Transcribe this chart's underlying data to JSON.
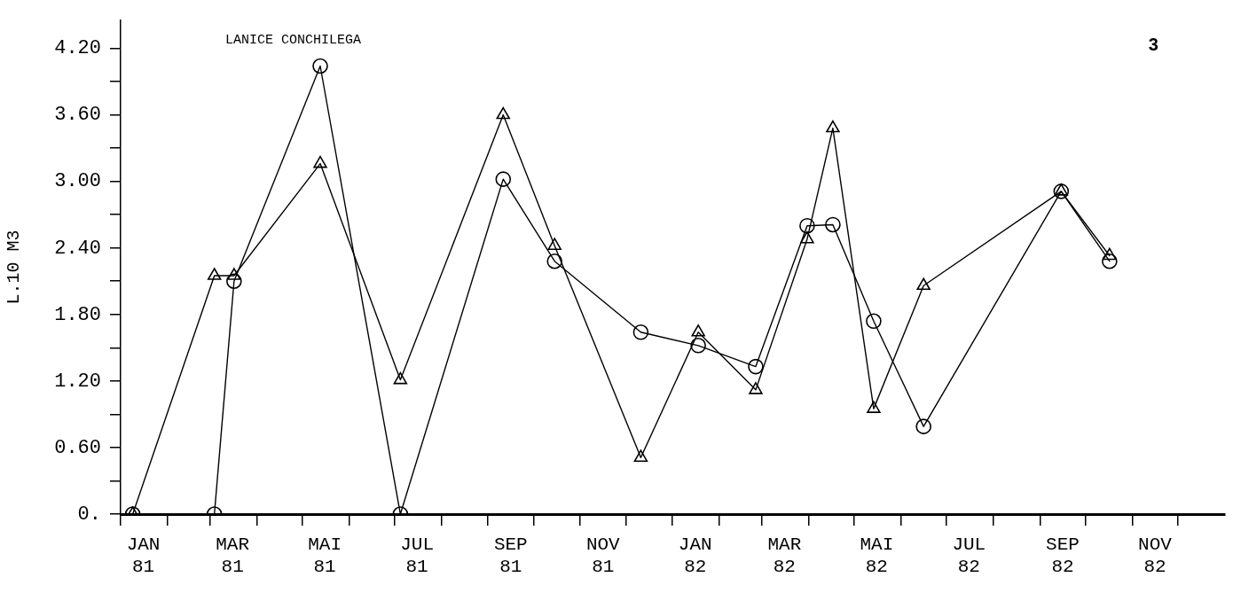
{
  "chart_data": {
    "type": "line",
    "title": "LANICE CONCHILEGA",
    "ylabel": "L.10 M3",
    "annotations": [
      "3"
    ],
    "grid": false,
    "legend": false,
    "xlim": [
      "1981-01-01",
      "1983-01-01"
    ],
    "xticks": [
      {
        "value": "1981-01-01",
        "label": null
      },
      {
        "value": "1981-01-16",
        "label": "JAN\n81"
      },
      {
        "value": "1981-02-01",
        "label": null
      },
      {
        "value": "1981-03-01",
        "label": null
      },
      {
        "value": "1981-03-16",
        "label": "MAR\n81"
      },
      {
        "value": "1981-04-01",
        "label": null
      },
      {
        "value": "1981-05-01",
        "label": null
      },
      {
        "value": "1981-05-16",
        "label": "MAI\n81"
      },
      {
        "value": "1981-06-01",
        "label": null
      },
      {
        "value": "1981-07-01",
        "label": null
      },
      {
        "value": "1981-07-16",
        "label": "JUL\n81"
      },
      {
        "value": "1981-08-01",
        "label": null
      },
      {
        "value": "1981-09-01",
        "label": null
      },
      {
        "value": "1981-09-16",
        "label": "SEP\n81"
      },
      {
        "value": "1981-10-01",
        "label": null
      },
      {
        "value": "1981-11-01",
        "label": null
      },
      {
        "value": "1981-11-16",
        "label": "NOV\n81"
      },
      {
        "value": "1981-12-01",
        "label": null
      },
      {
        "value": "1982-01-01",
        "label": null
      },
      {
        "value": "1982-01-16",
        "label": "JAN\n82"
      },
      {
        "value": "1982-02-01",
        "label": null
      },
      {
        "value": "1982-03-01",
        "label": null
      },
      {
        "value": "1982-03-16",
        "label": "MAR\n82"
      },
      {
        "value": "1982-04-01",
        "label": null
      },
      {
        "value": "1982-05-01",
        "label": null
      },
      {
        "value": "1982-05-16",
        "label": "MAI\n82"
      },
      {
        "value": "1982-06-01",
        "label": null
      },
      {
        "value": "1982-07-01",
        "label": null
      },
      {
        "value": "1982-07-16",
        "label": "JUL\n82"
      },
      {
        "value": "1982-08-01",
        "label": null
      },
      {
        "value": "1982-09-01",
        "label": null
      },
      {
        "value": "1982-09-16",
        "label": "SEP\n82"
      },
      {
        "value": "1982-10-01",
        "label": null
      },
      {
        "value": "1982-11-01",
        "label": null
      },
      {
        "value": "1982-11-16",
        "label": "NOV\n82"
      },
      {
        "value": "1982-12-01",
        "label": null
      }
    ],
    "ylim": [
      0,
      4.45
    ],
    "yticks": [
      {
        "value": 0,
        "label": "0."
      },
      {
        "value": 0.3,
        "label": null
      },
      {
        "value": 0.6,
        "label": "0.60"
      },
      {
        "value": 0.9,
        "label": null
      },
      {
        "value": 1.2,
        "label": "1.20"
      },
      {
        "value": 1.5,
        "label": null
      },
      {
        "value": 1.8,
        "label": "1.80"
      },
      {
        "value": 2.1,
        "label": null
      },
      {
        "value": 2.4,
        "label": "2.40"
      },
      {
        "value": 2.7,
        "label": null
      },
      {
        "value": 3.0,
        "label": "3.00"
      },
      {
        "value": 3.3,
        "label": null
      },
      {
        "value": 3.6,
        "label": "3.60"
      },
      {
        "value": 3.9,
        "label": null
      },
      {
        "value": 4.2,
        "label": "4.20"
      }
    ],
    "series": [
      {
        "marker": "circle",
        "line_style": "solid",
        "color": "#000000",
        "x": [
          "1981-01-09",
          "1981-03-04",
          "1981-03-17",
          "1981-05-13",
          "1981-07-05",
          "1981-09-11",
          "1981-10-15",
          "1981-12-11",
          "1982-01-18",
          "1982-02-25",
          "1982-03-31",
          "1982-04-17",
          "1982-05-14",
          "1982-06-16",
          "1982-09-15",
          "1982-10-17"
        ],
        "values": [
          0,
          0,
          2.1,
          4.04,
          0,
          3.02,
          2.28,
          1.64,
          1.52,
          1.33,
          2.6,
          2.61,
          1.74,
          0.79,
          2.91,
          2.28
        ]
      },
      {
        "marker": "triangle",
        "line_style": "solid",
        "color": "#000000",
        "x": [
          "1981-01-09",
          "1981-03-04",
          "1981-03-17",
          "1981-05-13",
          "1981-07-05",
          "1981-09-11",
          "1981-10-15",
          "1981-12-11",
          "1982-01-18",
          "1982-02-25",
          "1982-03-31",
          "1982-04-17",
          "1982-05-14",
          "1982-06-16",
          "1982-09-15",
          "1982-10-17"
        ],
        "values": [
          0,
          2.15,
          2.15,
          3.16,
          1.21,
          3.6,
          2.42,
          0.51,
          1.64,
          1.12,
          2.48,
          3.48,
          0.95,
          2.06,
          2.91,
          2.33
        ]
      }
    ]
  }
}
